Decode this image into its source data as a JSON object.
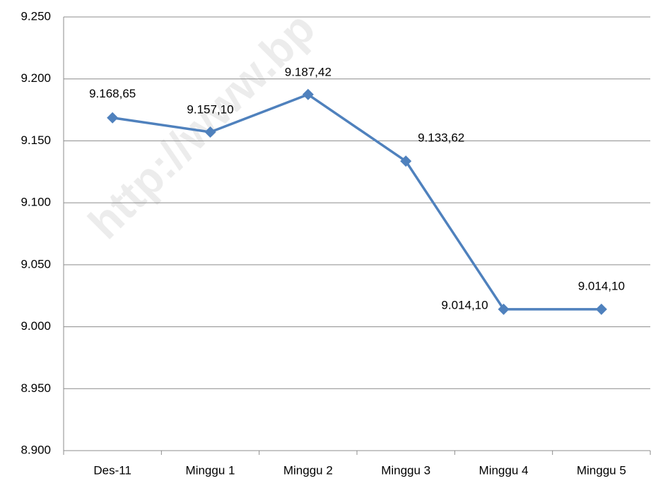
{
  "chart_data": {
    "type": "line",
    "watermark": "http://www.bp",
    "categories": [
      "Des-11",
      "Minggu 1",
      "Minggu 2",
      "Minggu 3",
      "Minggu 4",
      "Minggu 5"
    ],
    "series": [
      {
        "color": "#4f81bd",
        "values": [
          9168.65,
          9157.1,
          9187.42,
          9133.62,
          9014.1,
          9014.1
        ],
        "value_labels": [
          "9.168,65",
          "9.157,10",
          "9.187,42",
          "9.133,62",
          "9.014,10",
          "9.014,10"
        ]
      }
    ],
    "ylim": [
      8900,
      9250
    ],
    "yticks": [
      {
        "value": 8900,
        "label": "8.900"
      },
      {
        "value": 8950,
        "label": "8.950"
      },
      {
        "value": 9000,
        "label": "9.000"
      },
      {
        "value": 9050,
        "label": "9.050"
      },
      {
        "value": 9100,
        "label": "9.100"
      },
      {
        "value": 9150,
        "label": "9.150"
      },
      {
        "value": 9200,
        "label": "9.200"
      },
      {
        "value": 9250,
        "label": "9.250"
      }
    ],
    "grid": true
  }
}
